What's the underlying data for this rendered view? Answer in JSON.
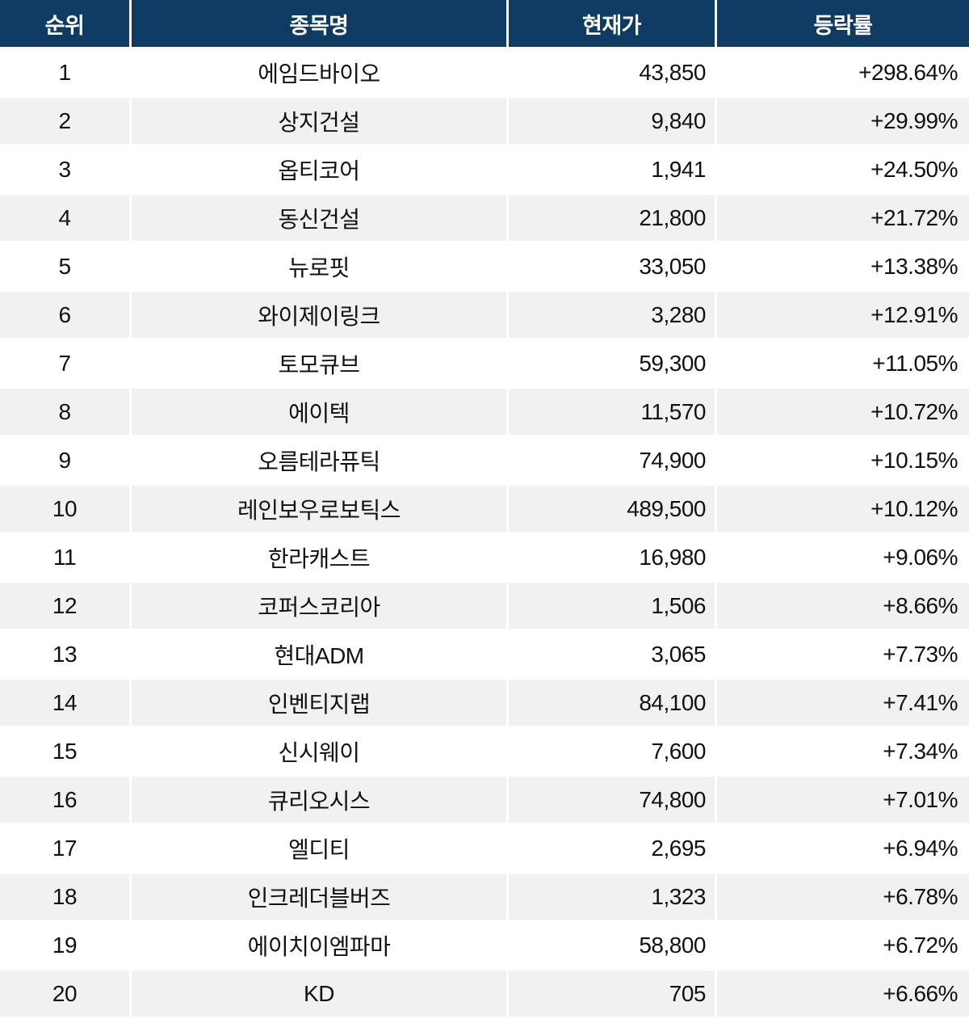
{
  "chart_data": {
    "type": "table",
    "title": "",
    "columns": [
      "순위",
      "종목명",
      "현재가",
      "등락률"
    ],
    "rows": [
      {
        "rank": "1",
        "name": "에임드바이오",
        "price": "43,850",
        "change": "+298.64%"
      },
      {
        "rank": "2",
        "name": "상지건설",
        "price": "9,840",
        "change": "+29.99%"
      },
      {
        "rank": "3",
        "name": "옵티코어",
        "price": "1,941",
        "change": "+24.50%"
      },
      {
        "rank": "4",
        "name": "동신건설",
        "price": "21,800",
        "change": "+21.72%"
      },
      {
        "rank": "5",
        "name": "뉴로핏",
        "price": "33,050",
        "change": "+13.38%"
      },
      {
        "rank": "6",
        "name": "와이제이링크",
        "price": "3,280",
        "change": "+12.91%"
      },
      {
        "rank": "7",
        "name": "토모큐브",
        "price": "59,300",
        "change": "+11.05%"
      },
      {
        "rank": "8",
        "name": "에이텍",
        "price": "11,570",
        "change": "+10.72%"
      },
      {
        "rank": "9",
        "name": "오름테라퓨틱",
        "price": "74,900",
        "change": "+10.15%"
      },
      {
        "rank": "10",
        "name": "레인보우로보틱스",
        "price": "489,500",
        "change": "+10.12%"
      },
      {
        "rank": "11",
        "name": "한라캐스트",
        "price": "16,980",
        "change": "+9.06%"
      },
      {
        "rank": "12",
        "name": "코퍼스코리아",
        "price": "1,506",
        "change": "+8.66%"
      },
      {
        "rank": "13",
        "name": "현대ADM",
        "price": "3,065",
        "change": "+7.73%"
      },
      {
        "rank": "14",
        "name": "인벤티지랩",
        "price": "84,100",
        "change": "+7.41%"
      },
      {
        "rank": "15",
        "name": "신시웨이",
        "price": "7,600",
        "change": "+7.34%"
      },
      {
        "rank": "16",
        "name": "큐리오시스",
        "price": "74,800",
        "change": "+7.01%"
      },
      {
        "rank": "17",
        "name": "엘디티",
        "price": "2,695",
        "change": "+6.94%"
      },
      {
        "rank": "18",
        "name": "인크레더블버즈",
        "price": "1,323",
        "change": "+6.78%"
      },
      {
        "rank": "19",
        "name": "에이치이엠파마",
        "price": "58,800",
        "change": "+6.72%"
      },
      {
        "rank": "20",
        "name": "KD",
        "price": "705",
        "change": "+6.66%"
      }
    ]
  },
  "colors": {
    "header_bg": "#0f3a61",
    "header_text": "#ffffff",
    "stripe_bg": "#f1f1f1",
    "row_bg": "#ffffff",
    "body_text": "#111111",
    "separator": "#ffffff"
  }
}
